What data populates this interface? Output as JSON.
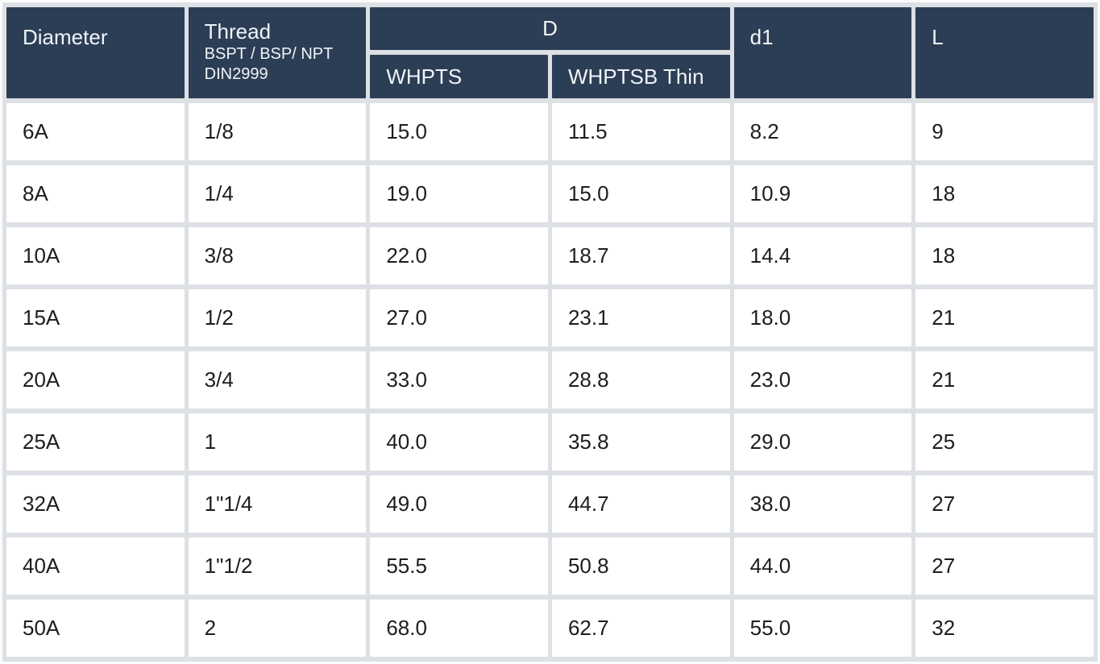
{
  "table": {
    "header": {
      "diameter": "Diameter",
      "thread_title": "Thread",
      "thread_sub1": "BSPT / BSP/ NPT",
      "thread_sub2": "DIN2999",
      "d_group": "D",
      "whpts": "WHPTS",
      "whptsb_thin": "WHPTSB Thin",
      "d1": "d1",
      "l": "L"
    },
    "rows": [
      [
        "6A",
        "1/8",
        "15.0",
        "11.5",
        "8.2",
        "9"
      ],
      [
        "8A",
        "1/4",
        "19.0",
        "15.0",
        "10.9",
        "18"
      ],
      [
        "10A",
        "3/8",
        "22.0",
        "18.7",
        "14.4",
        "18"
      ],
      [
        "15A",
        "1/2",
        "27.0",
        "23.1",
        "18.0",
        "21"
      ],
      [
        "20A",
        "3/4",
        "33.0",
        "28.8",
        "23.0",
        "21"
      ],
      [
        "25A",
        "1",
        "40.0",
        "35.8",
        "29.0",
        "25"
      ],
      [
        "32A",
        "1\"1/4",
        "49.0",
        "44.7",
        "38.0",
        "27"
      ],
      [
        "40A",
        "1\"1/2",
        "55.5",
        "50.8",
        "44.0",
        "27"
      ],
      [
        "50A",
        "2",
        "68.0",
        "62.7",
        "55.0",
        "32"
      ]
    ]
  },
  "chart_data": {
    "type": "table",
    "columns": [
      "Diameter",
      "Thread BSPT / BSP/ NPT DIN2999",
      "D WHPTS",
      "D WHPTSB Thin",
      "d1",
      "L"
    ],
    "rows": [
      [
        "6A",
        "1/8",
        15.0,
        11.5,
        8.2,
        9
      ],
      [
        "8A",
        "1/4",
        19.0,
        15.0,
        10.9,
        18
      ],
      [
        "10A",
        "3/8",
        22.0,
        18.7,
        14.4,
        18
      ],
      [
        "15A",
        "1/2",
        27.0,
        23.1,
        18.0,
        21
      ],
      [
        "20A",
        "3/4",
        33.0,
        28.8,
        23.0,
        21
      ],
      [
        "25A",
        "1",
        40.0,
        35.8,
        29.0,
        25
      ],
      [
        "32A",
        "1\"1/4",
        49.0,
        44.7,
        38.0,
        27
      ],
      [
        "40A",
        "1\"1/2",
        55.5,
        50.8,
        44.0,
        27
      ],
      [
        "50A",
        "2",
        68.0,
        62.7,
        55.0,
        32
      ]
    ]
  },
  "colors": {
    "header_bg": "#2c3e55",
    "header_text": "#f0f4f8",
    "frame_gray": "#dde0e4",
    "cell_bg": "#ffffff",
    "data_text": "#1d1d1f"
  }
}
